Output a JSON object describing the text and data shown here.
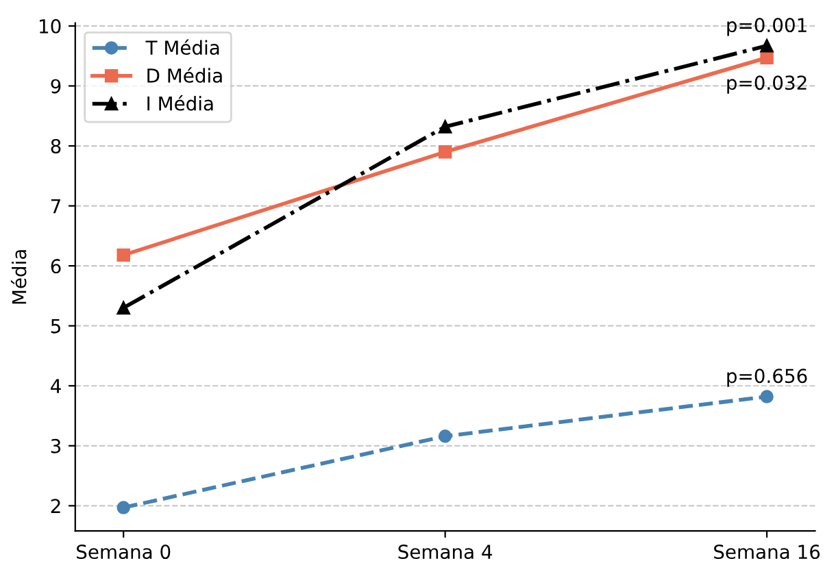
{
  "chart_data": {
    "type": "line",
    "ylabel": "Média",
    "categories": [
      "Semana 0",
      "Semana 4",
      "Semana 16"
    ],
    "ylim": [
      1.58,
      10.05
    ],
    "yticks": [
      2,
      3,
      4,
      5,
      6,
      7,
      8,
      9,
      10
    ],
    "grid": "y",
    "legend": "top left",
    "series": [
      {
        "name": "T Média",
        "color": "#4682b4",
        "values": [
          1.97,
          3.16,
          3.82
        ],
        "marker": "circle",
        "line_style": "dashed"
      },
      {
        "name": "D Média",
        "color": "#ec6a4f",
        "values": [
          6.18,
          7.9,
          9.47
        ],
        "marker": "square",
        "line_style": "solid"
      },
      {
        "name": "I Média",
        "color": "#000000",
        "values": [
          5.3,
          8.32,
          9.67
        ],
        "marker": "triangle",
        "line_style": "dashdot"
      }
    ],
    "annotations": [
      {
        "text": "p=0.001",
        "x": "Semana 16",
        "y": 9.67
      },
      {
        "text": "p=0.032",
        "x": "Semana 16",
        "y": 9.47
      },
      {
        "text": "p=0.656",
        "x": "Semana 16",
        "y": 3.82
      }
    ]
  }
}
